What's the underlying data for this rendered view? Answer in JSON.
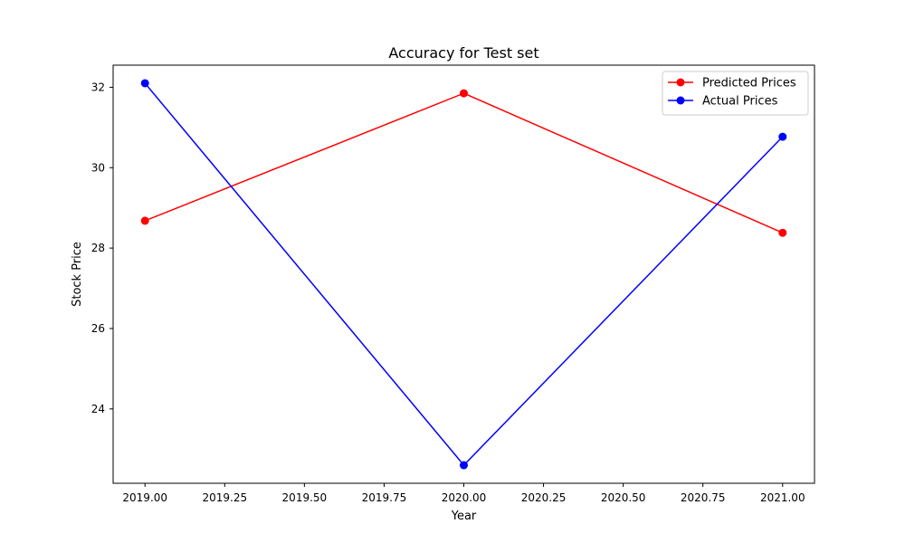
{
  "chart_data": {
    "type": "line",
    "title": "Accuracy for Test set",
    "xlabel": "Year",
    "ylabel": "Stock Price",
    "xlim": [
      2018.9,
      2021.1
    ],
    "ylim": [
      22.15,
      32.55
    ],
    "x_ticks": [
      2019.0,
      2019.25,
      2019.5,
      2019.75,
      2020.0,
      2020.25,
      2020.5,
      2020.75,
      2021.0
    ],
    "x_tick_labels": [
      "2019.00",
      "2019.25",
      "2019.50",
      "2019.75",
      "2020.00",
      "2020.25",
      "2020.50",
      "2020.75",
      "2021.00"
    ],
    "y_ticks": [
      24,
      26,
      28,
      30,
      32
    ],
    "y_tick_labels": [
      "24",
      "26",
      "28",
      "30",
      "32"
    ],
    "x": [
      2019,
      2020,
      2021
    ],
    "series": [
      {
        "name": "Predicted Prices",
        "color": "#ff0000",
        "marker": "circle",
        "values": [
          28.68,
          31.85,
          28.38
        ]
      },
      {
        "name": "Actual Prices",
        "color": "#0000ff",
        "marker": "circle",
        "values": [
          32.1,
          22.6,
          30.77
        ]
      }
    ],
    "grid": false,
    "legend_position": "top-right"
  }
}
